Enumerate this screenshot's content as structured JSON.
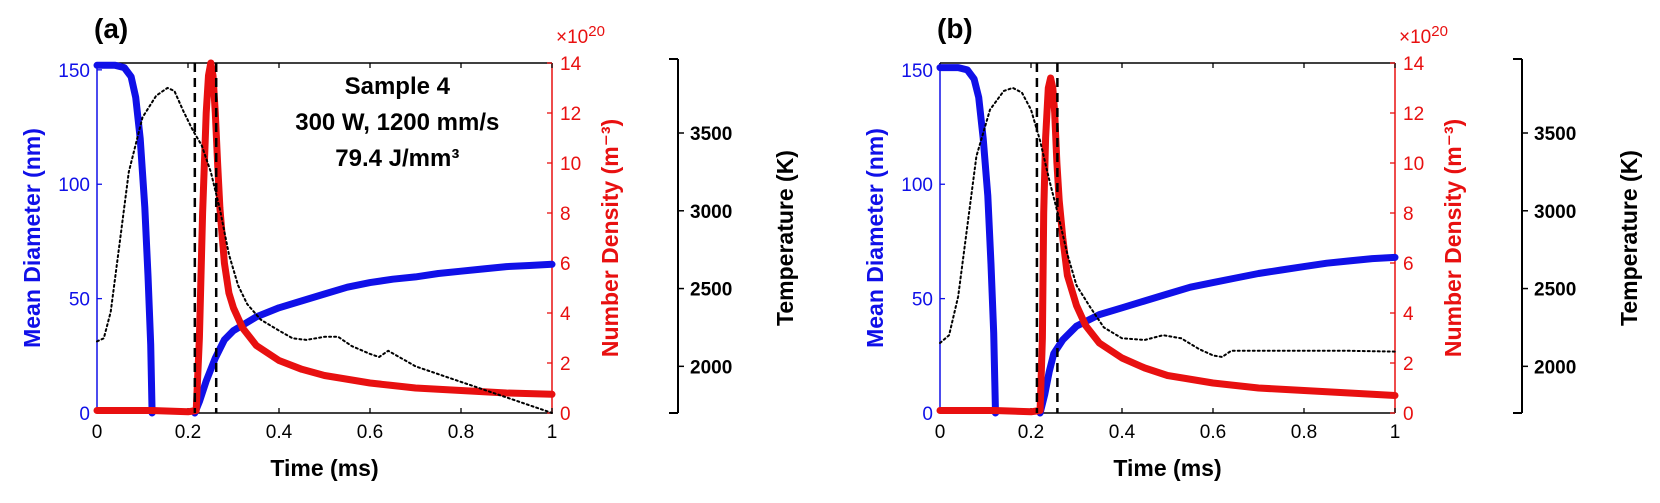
{
  "chart_data": [
    {
      "type": "line",
      "panel_label": "(a)",
      "xlabel": "Time (ms)",
      "ylabel_left": "Mean Diameter (nm)",
      "ylabel_right": "Number Density (m⁻³)",
      "ylabel_temp": "Temperature (K)",
      "right_multiplier": "×10",
      "right_multiplier_exp": "20",
      "xlim": [
        0,
        1
      ],
      "ylim_left": [
        0,
        153
      ],
      "ylim_right": [
        0,
        14
      ],
      "ylim_temp": [
        1700,
        3950
      ],
      "x_ticks": [
        "0",
        "0.2",
        "0.4",
        "0.6",
        "0.8",
        "1"
      ],
      "y_left_ticks": [
        "0",
        "50",
        "100",
        "150"
      ],
      "y_right_ticks": [
        "0",
        "2",
        "4",
        "6",
        "8",
        "10",
        "12",
        "14"
      ],
      "y_temp_ticks": [
        "2000",
        "2500",
        "3000",
        "3500"
      ],
      "annotation": [
        "Sample 4",
        "300 W, 1200 mm/s",
        "79.4 J/mm³"
      ],
      "vlines": [
        0.215,
        0.262
      ],
      "series": [
        {
          "name": "Mean Diameter",
          "axis": "left",
          "color": "#1010e8",
          "segments": [
            [
              [
                0,
                152
              ],
              [
                0.04,
                152
              ],
              [
                0.06,
                151
              ],
              [
                0.075,
                147
              ],
              [
                0.085,
                138
              ],
              [
                0.095,
                120
              ],
              [
                0.105,
                90
              ],
              [
                0.112,
                60
              ],
              [
                0.118,
                30
              ],
              [
                0.121,
                0
              ]
            ],
            [
              [
                0.215,
                0
              ],
              [
                0.225,
                5
              ],
              [
                0.24,
                14
              ],
              [
                0.26,
                24
              ],
              [
                0.28,
                32
              ],
              [
                0.3,
                36
              ],
              [
                0.35,
                42
              ],
              [
                0.4,
                46
              ],
              [
                0.45,
                49
              ],
              [
                0.5,
                52
              ],
              [
                0.55,
                55
              ],
              [
                0.6,
                57
              ],
              [
                0.65,
                58.5
              ],
              [
                0.7,
                59.5
              ],
              [
                0.75,
                61
              ],
              [
                0.8,
                62
              ],
              [
                0.85,
                63
              ],
              [
                0.9,
                64
              ],
              [
                0.95,
                64.5
              ],
              [
                1.0,
                65
              ]
            ]
          ]
        },
        {
          "name": "Number Density",
          "axis": "right",
          "color": "#e81010",
          "segments": [
            [
              [
                0,
                0.1
              ],
              [
                0.12,
                0.1
              ],
              [
                0.2,
                0.05
              ],
              [
                0.218,
                0.1
              ],
              [
                0.225,
                3
              ],
              [
                0.232,
                8
              ],
              [
                0.24,
                12
              ],
              [
                0.245,
                13.5
              ],
              [
                0.25,
                14
              ],
              [
                0.255,
                13.5
              ],
              [
                0.26,
                12
              ],
              [
                0.265,
                10
              ],
              [
                0.27,
                8.2
              ],
              [
                0.28,
                6
              ],
              [
                0.29,
                4.8
              ],
              [
                0.3,
                4.2
              ],
              [
                0.32,
                3.4
              ],
              [
                0.35,
                2.7
              ],
              [
                0.4,
                2.1
              ],
              [
                0.45,
                1.75
              ],
              [
                0.5,
                1.5
              ],
              [
                0.6,
                1.2
              ],
              [
                0.7,
                1.0
              ],
              [
                0.8,
                0.9
              ],
              [
                0.9,
                0.8
              ],
              [
                1.0,
                0.75
              ]
            ]
          ]
        },
        {
          "name": "Temperature",
          "axis": "temp",
          "color": "#000000",
          "style": "dotted",
          "segments": [
            [
              [
                0,
                2160
              ],
              [
                0.015,
                2180
              ],
              [
                0.03,
                2350
              ],
              [
                0.05,
                2800
              ],
              [
                0.07,
                3250
              ],
              [
                0.1,
                3600
              ],
              [
                0.13,
                3740
              ],
              [
                0.155,
                3790
              ],
              [
                0.17,
                3770
              ],
              [
                0.19,
                3640
              ],
              [
                0.21,
                3520
              ],
              [
                0.23,
                3420
              ],
              [
                0.25,
                3250
              ],
              [
                0.27,
                3010
              ],
              [
                0.29,
                2720
              ],
              [
                0.31,
                2520
              ],
              [
                0.33,
                2400
              ],
              [
                0.36,
                2300
              ],
              [
                0.4,
                2230
              ],
              [
                0.43,
                2180
              ],
              [
                0.46,
                2170
              ],
              [
                0.5,
                2190
              ],
              [
                0.53,
                2190
              ],
              [
                0.56,
                2130
              ],
              [
                0.6,
                2080
              ],
              [
                0.62,
                2060
              ],
              [
                0.64,
                2100
              ],
              [
                0.7,
                2000
              ],
              [
                0.8,
                1900
              ],
              [
                0.9,
                1800
              ],
              [
                1.0,
                1700
              ]
            ]
          ]
        }
      ]
    },
    {
      "type": "line",
      "panel_label": "(b)",
      "xlabel": "Time (ms)",
      "ylabel_left": "Mean Diameter (nm)",
      "ylabel_right": "Number Density (m⁻³)",
      "ylabel_temp": "Temperature (K)",
      "right_multiplier": "×10",
      "right_multiplier_exp": "20",
      "xlim": [
        0,
        1
      ],
      "ylim_left": [
        0,
        153
      ],
      "ylim_right": [
        0,
        14
      ],
      "ylim_temp": [
        1700,
        3950
      ],
      "x_ticks": [
        "0",
        "0.2",
        "0.4",
        "0.6",
        "0.8",
        "1"
      ],
      "y_left_ticks": [
        "0",
        "50",
        "100",
        "150"
      ],
      "y_right_ticks": [
        "0",
        "2",
        "4",
        "6",
        "8",
        "10",
        "12",
        "14"
      ],
      "y_temp_ticks": [
        "2000",
        "2500",
        "3000",
        "3500"
      ],
      "vlines": [
        0.213,
        0.258
      ],
      "series": [
        {
          "name": "Mean Diameter",
          "axis": "left",
          "color": "#1010e8",
          "segments": [
            [
              [
                0,
                151
              ],
              [
                0.04,
                151
              ],
              [
                0.06,
                150
              ],
              [
                0.075,
                146
              ],
              [
                0.085,
                138
              ],
              [
                0.095,
                120
              ],
              [
                0.105,
                95
              ],
              [
                0.112,
                65
              ],
              [
                0.118,
                35
              ],
              [
                0.122,
                0
              ]
            ],
            [
              [
                0.22,
                0
              ],
              [
                0.23,
                8
              ],
              [
                0.24,
                18
              ],
              [
                0.25,
                26
              ],
              [
                0.27,
                32
              ],
              [
                0.3,
                38
              ],
              [
                0.35,
                43
              ],
              [
                0.4,
                46
              ],
              [
                0.45,
                49
              ],
              [
                0.5,
                52
              ],
              [
                0.55,
                55
              ],
              [
                0.6,
                57
              ],
              [
                0.65,
                59
              ],
              [
                0.7,
                61
              ],
              [
                0.75,
                62.5
              ],
              [
                0.8,
                64
              ],
              [
                0.85,
                65.5
              ],
              [
                0.9,
                66.5
              ],
              [
                0.95,
                67.5
              ],
              [
                1.0,
                68
              ]
            ]
          ]
        },
        {
          "name": "Number Density",
          "axis": "right",
          "color": "#e81010",
          "segments": [
            [
              [
                0,
                0.1
              ],
              [
                0.12,
                0.1
              ],
              [
                0.2,
                0.05
              ],
              [
                0.22,
                0.1
              ],
              [
                0.225,
                3
              ],
              [
                0.228,
                8
              ],
              [
                0.232,
                11
              ],
              [
                0.238,
                13
              ],
              [
                0.243,
                13.4
              ],
              [
                0.248,
                13
              ],
              [
                0.252,
                12
              ],
              [
                0.257,
                10
              ],
              [
                0.262,
                8.5
              ],
              [
                0.27,
                7
              ],
              [
                0.28,
                5.5
              ],
              [
                0.3,
                4.3
              ],
              [
                0.32,
                3.5
              ],
              [
                0.35,
                2.8
              ],
              [
                0.4,
                2.2
              ],
              [
                0.45,
                1.8
              ],
              [
                0.5,
                1.5
              ],
              [
                0.6,
                1.2
              ],
              [
                0.7,
                1.0
              ],
              [
                0.8,
                0.9
              ],
              [
                0.9,
                0.8
              ],
              [
                1.0,
                0.7
              ]
            ]
          ]
        },
        {
          "name": "Temperature",
          "axis": "temp",
          "color": "#000000",
          "style": "dotted",
          "segments": [
            [
              [
                0,
                2150
              ],
              [
                0.02,
                2200
              ],
              [
                0.04,
                2450
              ],
              [
                0.06,
                2900
              ],
              [
                0.08,
                3350
              ],
              [
                0.11,
                3650
              ],
              [
                0.14,
                3770
              ],
              [
                0.16,
                3790
              ],
              [
                0.18,
                3760
              ],
              [
                0.2,
                3650
              ],
              [
                0.22,
                3450
              ],
              [
                0.24,
                3200
              ],
              [
                0.26,
                2970
              ],
              [
                0.28,
                2720
              ],
              [
                0.3,
                2520
              ],
              [
                0.33,
                2380
              ],
              [
                0.36,
                2250
              ],
              [
                0.4,
                2180
              ],
              [
                0.45,
                2170
              ],
              [
                0.49,
                2200
              ],
              [
                0.53,
                2180
              ],
              [
                0.57,
                2110
              ],
              [
                0.6,
                2070
              ],
              [
                0.62,
                2060
              ],
              [
                0.64,
                2100
              ],
              [
                0.7,
                2100
              ],
              [
                0.8,
                2100
              ],
              [
                0.9,
                2100
              ],
              [
                1.0,
                2095
              ]
            ]
          ]
        }
      ]
    }
  ]
}
